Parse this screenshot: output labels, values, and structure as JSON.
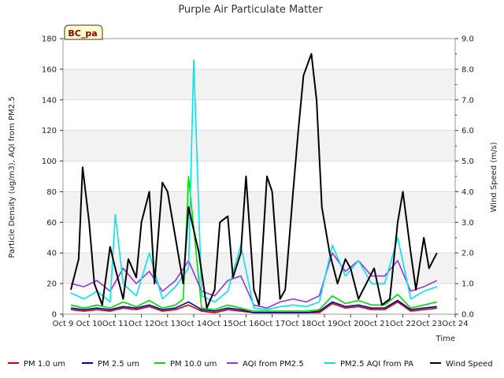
{
  "chart_data": {
    "type": "line",
    "title": "Purple Air Particulate Matter",
    "badge": "BC_pa",
    "xlabel": "Time",
    "ylabel": "Particle Density (ug/m3), AQI from PM2.5",
    "y2label": "Wind Speed (m/s)",
    "xlim": [
      9,
      24
    ],
    "ylim": [
      0,
      180
    ],
    "y2lim": [
      0,
      9
    ],
    "grid": "horizontal-bands",
    "legend_position": "bottom",
    "x_ticks": [
      "Oct 9",
      "Oct 10",
      "Oct 11",
      "Oct 12",
      "Oct 13",
      "Oct 14",
      "Oct 15",
      "Oct 16",
      "Oct 17",
      "Oct 18",
      "Oct 19",
      "Oct 20",
      "Oct 21",
      "Oct 22",
      "Oct 23",
      "Oct 24"
    ],
    "y_ticks": [
      "0",
      "20",
      "40",
      "60",
      "80",
      "100",
      "120",
      "140",
      "160",
      "180"
    ],
    "y2_ticks": [
      "0.0",
      "1.0",
      "2.0",
      "3.0",
      "4.0",
      "5.0",
      "6.0",
      "7.0",
      "8.0",
      "9.0"
    ],
    "series": [
      {
        "name": "PM 1.0 um",
        "color": "#cc0000",
        "axis": "left",
        "x": [
          9.3,
          9.8,
          10.3,
          10.8,
          11.3,
          11.8,
          12.3,
          12.8,
          13.3,
          13.8,
          14.3,
          14.8,
          15.3,
          15.8,
          16.3,
          16.8,
          17.3,
          17.8,
          18.3,
          18.8,
          19.3,
          19.8,
          20.3,
          20.8,
          21.3,
          21.8,
          22.3,
          22.8,
          23.3
        ],
        "values": [
          3,
          2,
          3,
          2,
          4,
          3,
          5,
          2,
          3,
          6,
          2,
          1,
          3,
          2,
          1,
          1,
          1,
          1,
          1,
          1,
          7,
          4,
          5,
          3,
          3,
          8,
          2,
          3,
          4
        ]
      },
      {
        "name": "PM 2.5 um",
        "color": "#000099",
        "axis": "left",
        "x": [
          9.3,
          9.8,
          10.3,
          10.8,
          11.3,
          11.8,
          12.3,
          12.8,
          13.3,
          13.8,
          14.3,
          14.8,
          15.3,
          15.8,
          16.3,
          16.8,
          17.3,
          17.8,
          18.3,
          18.8,
          19.3,
          19.8,
          20.3,
          20.8,
          21.3,
          21.8,
          22.3,
          22.8,
          23.3
        ],
        "values": [
          4,
          3,
          4,
          3,
          5,
          4,
          6,
          3,
          4,
          8,
          3,
          2,
          4,
          3,
          1,
          1,
          1,
          1,
          1,
          2,
          8,
          5,
          6,
          4,
          4,
          9,
          3,
          4,
          5
        ]
      },
      {
        "name": "PM 10.0 um",
        "color": "#00dd00",
        "axis": "left",
        "x": [
          9.3,
          9.8,
          10.3,
          10.8,
          11.3,
          11.8,
          12.3,
          12.8,
          13.3,
          13.6,
          13.8,
          14.3,
          14.8,
          15.3,
          15.8,
          16.3,
          16.8,
          17.3,
          17.8,
          18.3,
          18.8,
          19.3,
          19.8,
          20.3,
          20.8,
          21.3,
          21.8,
          22.3,
          22.8,
          23.3
        ],
        "values": [
          6,
          4,
          6,
          4,
          8,
          5,
          9,
          4,
          6,
          10,
          90,
          4,
          3,
          6,
          4,
          2,
          2,
          2,
          2,
          2,
          3,
          12,
          7,
          9,
          6,
          6,
          13,
          4,
          6,
          8
        ]
      },
      {
        "name": "AQI from PM2.5",
        "color": "#9933dd",
        "axis": "left",
        "x": [
          9.3,
          9.8,
          10.3,
          10.8,
          11.3,
          11.8,
          12.3,
          12.8,
          13.3,
          13.8,
          14.3,
          14.8,
          15.3,
          15.8,
          16.3,
          16.8,
          17.3,
          17.8,
          18.3,
          18.8,
          19.3,
          19.8,
          20.3,
          20.8,
          21.3,
          21.8,
          22.3,
          22.8,
          23.3
        ],
        "values": [
          20,
          18,
          22,
          15,
          30,
          20,
          28,
          15,
          22,
          35,
          15,
          12,
          22,
          25,
          6,
          4,
          8,
          10,
          8,
          12,
          40,
          28,
          35,
          25,
          25,
          35,
          15,
          18,
          22
        ]
      },
      {
        "name": "PM2.5 AQI from PA",
        "color": "#00e5ee",
        "axis": "left",
        "x": [
          9.3,
          9.8,
          10.3,
          10.8,
          11.0,
          11.3,
          11.8,
          12.3,
          12.8,
          13.3,
          13.8,
          14.0,
          14.3,
          14.8,
          15.3,
          15.8,
          16.3,
          16.8,
          17.3,
          17.8,
          18.3,
          18.8,
          19.3,
          19.8,
          20.3,
          20.8,
          21.3,
          21.8,
          22.3,
          22.8,
          23.3
        ],
        "values": [
          14,
          10,
          15,
          8,
          65,
          20,
          12,
          40,
          10,
          18,
          30,
          166,
          12,
          8,
          15,
          45,
          4,
          3,
          5,
          6,
          5,
          8,
          45,
          25,
          35,
          20,
          20,
          50,
          10,
          15,
          18
        ]
      },
      {
        "name": "Wind Speed",
        "color": "#000000",
        "axis": "right",
        "x": [
          9.3,
          9.6,
          9.75,
          10.0,
          10.2,
          10.5,
          10.8,
          11.0,
          11.3,
          11.5,
          11.8,
          12.0,
          12.3,
          12.5,
          12.8,
          13.0,
          13.3,
          13.6,
          13.8,
          14.2,
          14.5,
          14.8,
          15.0,
          15.3,
          15.5,
          15.8,
          16.0,
          16.3,
          16.5,
          16.8,
          17.0,
          17.3,
          17.5,
          17.8,
          18.0,
          18.2,
          18.5,
          18.7,
          18.9,
          19.2,
          19.5,
          19.8,
          20.0,
          20.3,
          20.6,
          20.9,
          21.2,
          21.5,
          21.8,
          22.0,
          22.3,
          22.5,
          22.8,
          23.0,
          23.3
        ],
        "values": [
          0.8,
          1.8,
          4.8,
          3.0,
          1.0,
          0.3,
          2.2,
          1.5,
          0.5,
          1.8,
          1.2,
          3.0,
          4.0,
          1.0,
          4.3,
          4.0,
          2.5,
          1.0,
          3.5,
          2.0,
          0.2,
          0.8,
          3.0,
          3.2,
          1.2,
          2.0,
          4.5,
          0.8,
          0.3,
          4.5,
          4.0,
          0.5,
          0.8,
          4.0,
          6.0,
          7.8,
          8.5,
          7.0,
          3.5,
          2.0,
          1.0,
          1.8,
          1.5,
          0.5,
          1.0,
          1.5,
          0.3,
          0.5,
          3.0,
          4.0,
          2.0,
          0.8,
          2.5,
          1.5,
          2.0
        ]
      }
    ]
  }
}
